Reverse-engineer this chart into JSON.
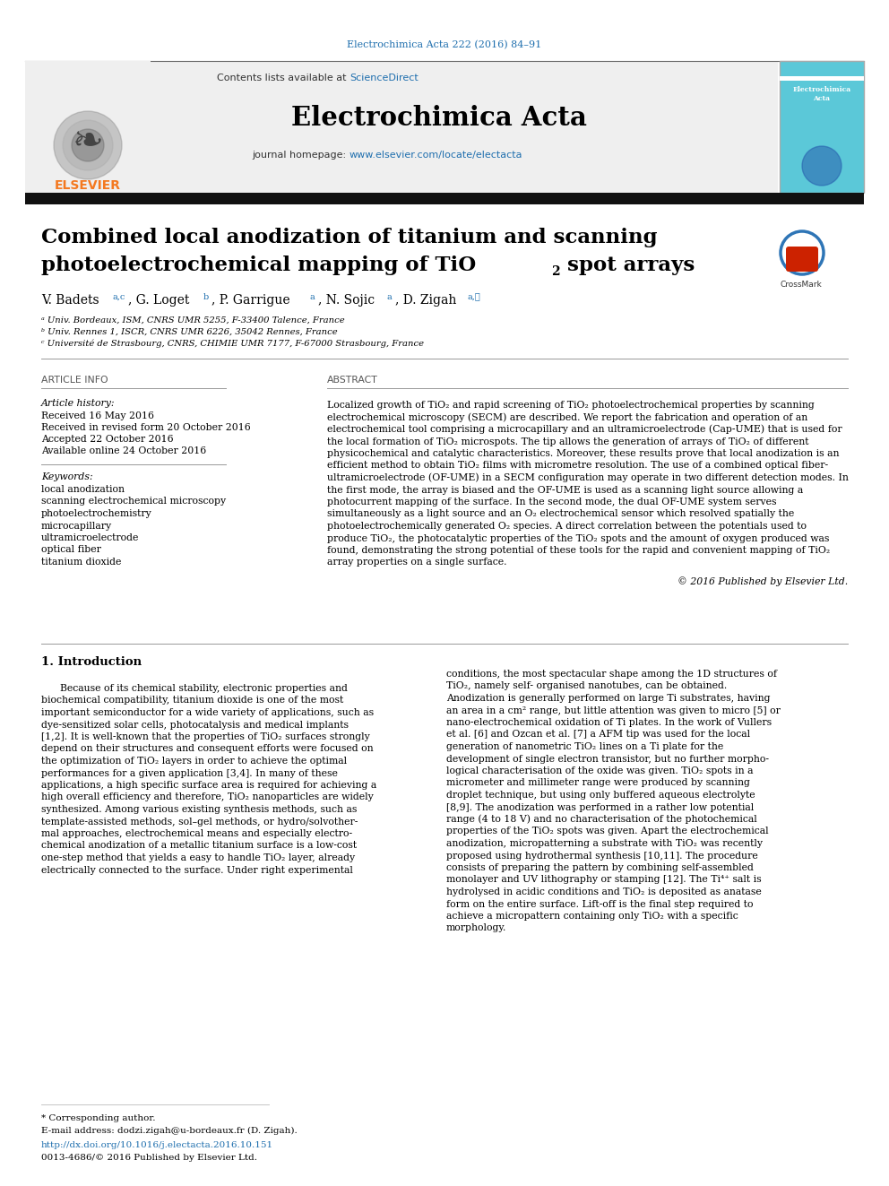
{
  "page_title": "Electrochimica Acta 222 (2016) 84–91",
  "journal_name": "Electrochimica Acta",
  "journal_url": "www.elsevier.com/locate/electacta",
  "sciencedirect_text": "Contents lists available at ScienceDirect",
  "article_title_line1": "Combined local anodization of titanium and scanning",
  "article_title_line2a": "photoelectrochemical mapping of TiO",
  "article_title_line2b": " spot arrays",
  "affil_a": "ᵃ Univ. Bordeaux, ISM, CNRS UMR 5255, F-33400 Talence, France",
  "affil_b": "ᵇ Univ. Rennes 1, ISCR, CNRS UMR 6226, 35042 Rennes, France",
  "affil_c": "ᶜ Université de Strasbourg, CNRS, CHIMIE UMR 7177, F-67000 Strasbourg, France",
  "article_info_header": "ARTICLE INFO",
  "abstract_header": "ABSTRACT",
  "article_history_label": "Article history:",
  "received": "Received 16 May 2016",
  "revised": "Received in revised form 20 October 2016",
  "accepted": "Accepted 22 October 2016",
  "available": "Available online 24 October 2016",
  "keywords_label": "Keywords:",
  "keywords": [
    "local anodization",
    "scanning electrochemical microscopy",
    "photoelectrochemistry",
    "microcapillary",
    "ultramicroelectrode",
    "optical fiber",
    "titanium dioxide"
  ],
  "abstract_lines": [
    "Localized growth of TiO₂ and rapid screening of TiO₂ photoelectrochemical properties by scanning",
    "electrochemical microscopy (SECM) are described. We report the fabrication and operation of an",
    "electrochemical tool comprising a microcapillary and an ultramicroelectrode (Cap-UME) that is used for",
    "the local formation of TiO₂ microspots. The tip allows the generation of arrays of TiO₂ of different",
    "physicochemical and catalytic characteristics. Moreover, these results prove that local anodization is an",
    "efficient method to obtain TiO₂ films with micrometre resolution. The use of a combined optical fiber-",
    "ultramicroelectrode (OF-UME) in a SECM configuration may operate in two different detection modes. In",
    "the first mode, the array is biased and the OF-UME is used as a scanning light source allowing a",
    "photocurrent mapping of the surface. In the second mode, the dual OF-UME system serves",
    "simultaneously as a light source and an O₂ electrochemical sensor which resolved spatially the",
    "photoelectrochemically generated O₂ species. A direct correlation between the potentials used to",
    "produce TiO₂, the photocatalytic properties of the TiO₂ spots and the amount of oxygen produced was",
    "found, demonstrating the strong potential of these tools for the rapid and convenient mapping of TiO₂",
    "array properties on a single surface."
  ],
  "copyright": "© 2016 Published by Elsevier Ltd.",
  "section1_title": "1. Introduction",
  "intro_col1_lines": [
    "      Because of its chemical stability, electronic properties and",
    "biochemical compatibility, titanium dioxide is one of the most",
    "important semiconductor for a wide variety of applications, such as",
    "dye-sensitized solar cells, photocatalysis and medical implants",
    "[1,2]. It is well-known that the properties of TiO₂ surfaces strongly",
    "depend on their structures and consequent efforts were focused on",
    "the optimization of TiO₂ layers in order to achieve the optimal",
    "performances for a given application [3,4]. In many of these",
    "applications, a high specific surface area is required for achieving a",
    "high overall efficiency and therefore, TiO₂ nanoparticles are widely",
    "synthesized. Among various existing synthesis methods, such as",
    "template-assisted methods, sol–gel methods, or hydro/solvother-",
    "mal approaches, electrochemical means and especially electro-",
    "chemical anodization of a metallic titanium surface is a low-cost",
    "one-step method that yields a easy to handle TiO₂ layer, already",
    "electrically connected to the surface. Under right experimental"
  ],
  "intro_col2_lines": [
    "conditions, the most spectacular shape among the 1D structures of",
    "TiO₂, namely self- organised nanotubes, can be obtained.",
    "Anodization is generally performed on large Ti substrates, having",
    "an area in a cm² range, but little attention was given to micro [5] or",
    "nano-electrochemical oxidation of Ti plates. In the work of Vullers",
    "et al. [6] and Ozcan et al. [7] a AFM tip was used for the local",
    "generation of nanometric TiO₂ lines on a Ti plate for the",
    "development of single electron transistor, but no further morpho-",
    "logical characterisation of the oxide was given. TiO₂ spots in a",
    "micrometer and millimeter range were produced by scanning",
    "droplet technique, but using only buffered aqueous electrolyte",
    "[8,9]. The anodization was performed in a rather low potential",
    "range (4 to 18 V) and no characterisation of the photochemical",
    "properties of the TiO₂ spots was given. Apart the electrochemical",
    "anodization, micropatterning a substrate with TiO₂ was recently",
    "proposed using hydrothermal synthesis [10,11]. The procedure",
    "consists of preparing the pattern by combining self-assembled",
    "monolayer and UV lithography or stamping [12]. The Ti⁴⁺ salt is",
    "hydrolysed in acidic conditions and TiO₂ is deposited as anatase",
    "form on the entire surface. Lift-off is the final step required to",
    "achieve a micropattern containing only TiO₂ with a specific",
    "morphology."
  ],
  "footer_note": "* Corresponding author.",
  "footer_email": "E-mail address: dodzi.zigah@u-bordeaux.fr (D. Zigah).",
  "footer_doi": "http://dx.doi.org/10.1016/j.electacta.2016.10.151",
  "footer_issn": "0013-4686/© 2016 Published by Elsevier Ltd.",
  "bg_color": "#ffffff",
  "gray_header_bg": "#efefef",
  "black_bar_color": "#111111",
  "elsevier_orange": "#F47920",
  "link_color": "#1F6FAE",
  "title_color": "#000000",
  "text_color": "#000000"
}
